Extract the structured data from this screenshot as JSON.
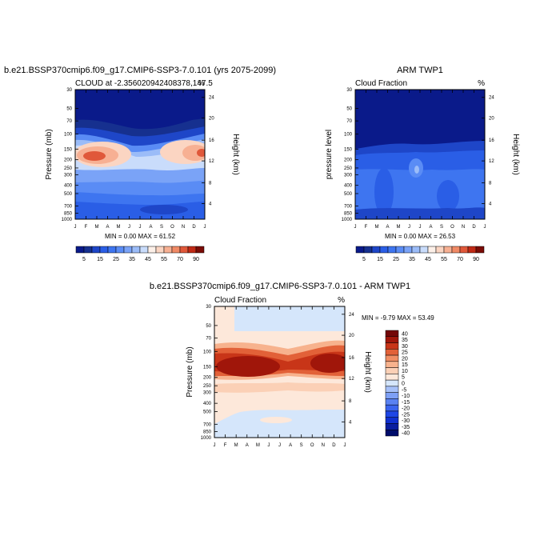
{
  "chart_data": [
    {
      "type": "heatmap",
      "title": "b.e21.BSSP370cmip6.f09_g17.CMIP6-SSP3-7.0.101 (yrs 2075-2099)",
      "subtitle_left": "CLOUD at -2.356020942408378,147.5",
      "subtitle_right": "%",
      "ylabel": "Pressure (mb)",
      "ylabel_right": "Height (km)",
      "x_ticks": [
        "J",
        "F",
        "M",
        "A",
        "M",
        "J",
        "J",
        "A",
        "S",
        "O",
        "N",
        "D",
        "J"
      ],
      "y_ticks": [
        "30",
        "50",
        "70",
        "100",
        "150",
        "200",
        "250",
        "300",
        "400",
        "500",
        "700",
        "850",
        "1000"
      ],
      "y_ticks_right": [
        "24",
        "20",
        "16",
        "12",
        "8",
        "4"
      ],
      "stats": "MIN =   0.00 MAX =  61.52",
      "colorbar_labels": [
        "5",
        "15",
        "25",
        "35",
        "45",
        "55",
        "70",
        "90"
      ],
      "levels": [
        0,
        5,
        10,
        15,
        20,
        25,
        30,
        35,
        40,
        45,
        50,
        55,
        60,
        70,
        80,
        90
      ]
    },
    {
      "type": "heatmap",
      "title": "ARM TWP1",
      "subtitle_left": "Cloud Fraction",
      "subtitle_right": "%",
      "ylabel": "pressure level",
      "ylabel_right": "Height (km)",
      "x_ticks": [
        "J",
        "F",
        "M",
        "A",
        "M",
        "J",
        "J",
        "A",
        "S",
        "O",
        "N",
        "D",
        "J"
      ],
      "y_ticks": [
        "30",
        "50",
        "70",
        "100",
        "150",
        "200",
        "250",
        "300",
        "400",
        "500",
        "700",
        "850",
        "1000"
      ],
      "y_ticks_right": [
        "24",
        "20",
        "16",
        "12",
        "8",
        "4"
      ],
      "stats": "MIN =   0.00 MAX =  26.53",
      "colorbar_labels": [
        "5",
        "15",
        "25",
        "35",
        "45",
        "55",
        "70",
        "90"
      ],
      "levels": [
        0,
        5,
        10,
        15,
        20,
        25,
        30,
        35,
        40,
        45,
        50,
        55,
        60,
        70,
        80,
        90
      ]
    },
    {
      "type": "heatmap",
      "title": "b.e21.BSSP370cmip6.f09_g17.CMIP6-SSP3-7.0.101 - ARM TWP1",
      "subtitle_left": "Cloud Fraction",
      "subtitle_right": "%",
      "ylabel": "Pressure (mb)",
      "ylabel_right": "Height (km)",
      "x_ticks": [
        "J",
        "F",
        "M",
        "A",
        "M",
        "J",
        "J",
        "A",
        "S",
        "O",
        "N",
        "D",
        "J"
      ],
      "y_ticks": [
        "30",
        "50",
        "70",
        "100",
        "150",
        "200",
        "250",
        "300",
        "400",
        "500",
        "700",
        "850",
        "1000"
      ],
      "y_ticks_right": [
        "24",
        "20",
        "16",
        "12",
        "8",
        "4"
      ],
      "stats": "MIN =  -9.79 MAX =  53.49",
      "colorbar_labels": [
        "40",
        "35",
        "30",
        "25",
        "20",
        "15",
        "10",
        "5",
        "0",
        "-5",
        "-10",
        "-15",
        "-20",
        "-25",
        "-30",
        "-35",
        "-40"
      ],
      "levels": [
        -40,
        -35,
        -30,
        -25,
        -20,
        -15,
        -10,
        -5,
        0,
        5,
        10,
        15,
        20,
        25,
        30,
        35,
        40
      ]
    }
  ],
  "colors": {
    "seq": [
      "#0a1a8a",
      "#16308f",
      "#1e46c8",
      "#2a5ee6",
      "#3e75f0",
      "#5a8cf5",
      "#7aa3f7",
      "#9bbcf8",
      "#c9dcfb",
      "#fdf0e8",
      "#fbd5c2",
      "#f7b093",
      "#f08a66",
      "#e0583a",
      "#c02a16",
      "#7a0c06"
    ],
    "div": [
      "#000d6b",
      "#0a1ea0",
      "#1030d0",
      "#1e46e6",
      "#3a64ee",
      "#5a82f2",
      "#7ea0f5",
      "#a6c0f8",
      "#d5e6fb",
      "#fde8da",
      "#fbd0b6",
      "#f7b28d",
      "#f08e64",
      "#e26138",
      "#c83518",
      "#a0160a",
      "#730707"
    ]
  }
}
